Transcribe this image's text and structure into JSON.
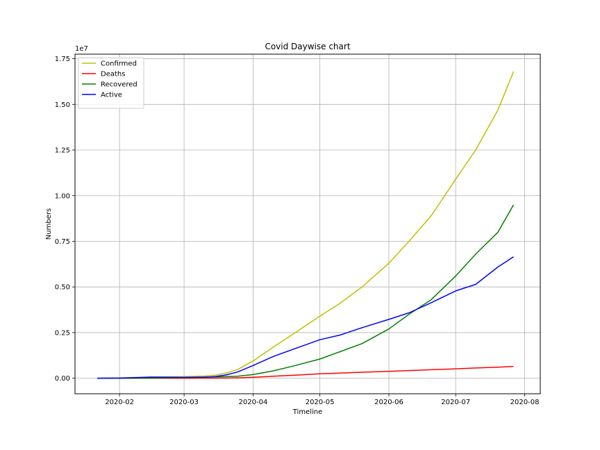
{
  "chart_data": {
    "type": "line",
    "title": "Covid Daywise chart",
    "xlabel": "Timeline",
    "ylabel": "Numbers",
    "y_offset_text": "1e7",
    "x_tick_labels": [
      "2020-02",
      "2020-03",
      "2020-04",
      "2020-05",
      "2020-06",
      "2020-07",
      "2020-08"
    ],
    "x_tick_dates": [
      "2020-02-01",
      "2020-03-01",
      "2020-04-01",
      "2020-05-01",
      "2020-06-01",
      "2020-07-01",
      "2020-08-01"
    ],
    "y_tick_labels": [
      "0.00",
      "0.25",
      "0.50",
      "0.75",
      "1.00",
      "1.25",
      "1.50",
      "1.75"
    ],
    "y_tick_values": [
      0,
      2500000,
      5000000,
      7500000,
      10000000,
      12500000,
      15000000,
      17500000
    ],
    "xlim": [
      "2020-01-12",
      "2020-08-08"
    ],
    "ylim": [
      -850000,
      17750000
    ],
    "grid": true,
    "legend_position": "top-left",
    "x": [
      "2020-01-22",
      "2020-02-01",
      "2020-02-15",
      "2020-03-01",
      "2020-03-10",
      "2020-03-15",
      "2020-03-20",
      "2020-03-25",
      "2020-04-01",
      "2020-04-10",
      "2020-04-20",
      "2020-05-01",
      "2020-05-10",
      "2020-05-20",
      "2020-06-01",
      "2020-06-10",
      "2020-06-20",
      "2020-07-01",
      "2020-07-10",
      "2020-07-20",
      "2020-07-27"
    ],
    "series": [
      {
        "name": "Confirmed",
        "color": "#bfbf00",
        "values": [
          555,
          12000,
          69000,
          88000,
          120000,
          170000,
          280000,
          470000,
          950000,
          1700000,
          2500000,
          3400000,
          4100000,
          5000000,
          6300000,
          7500000,
          8900000,
          10900000,
          12500000,
          14700000,
          16800000
        ]
      },
      {
        "name": "Deaths",
        "color": "#ff0000",
        "values": [
          17,
          260,
          1500,
          3000,
          4000,
          6500,
          11000,
          21000,
          51000,
          110000,
          170000,
          240000,
          285000,
          330000,
          375000,
          420000,
          465000,
          515000,
          560000,
          605000,
          650000
        ]
      },
      {
        "name": "Recovered",
        "color": "#008000",
        "values": [
          28,
          300,
          8000,
          42000,
          62000,
          75000,
          87000,
          110000,
          200000,
          400000,
          700000,
          1050000,
          1450000,
          1900000,
          2700000,
          3500000,
          4300000,
          5600000,
          6800000,
          8000000,
          9500000
        ]
      },
      {
        "name": "Active",
        "color": "#0000ff",
        "values": [
          510,
          11400,
          59500,
          43000,
          54000,
          88500,
          182000,
          339000,
          699000,
          1190000,
          1630000,
          2110000,
          2365000,
          2770000,
          3225000,
          3580000,
          4135000,
          4785000,
          5140000,
          6095000,
          6650000
        ]
      }
    ]
  }
}
